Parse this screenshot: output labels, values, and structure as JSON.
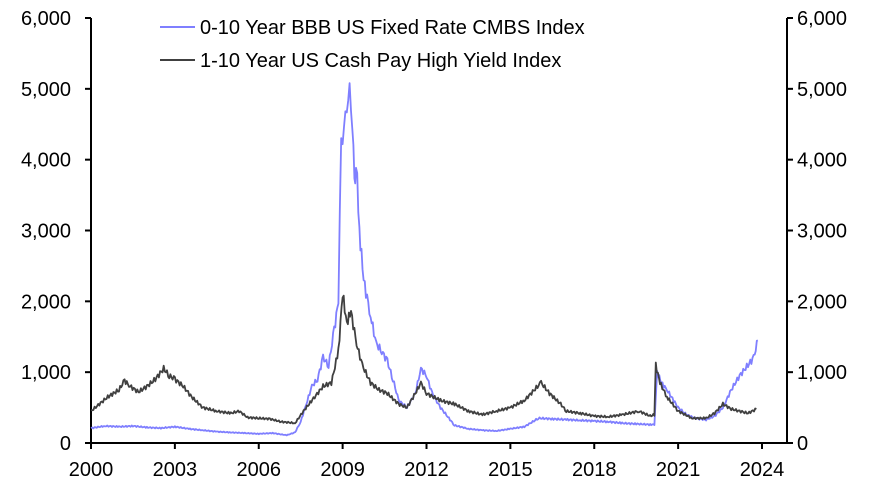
{
  "chart_data": {
    "type": "line",
    "title": "",
    "xlabel": "",
    "ylabel": "",
    "xlim": [
      2000,
      2024.9
    ],
    "ylim": [
      0,
      6000
    ],
    "x_ticks": [
      2000,
      2003,
      2006,
      2009,
      2012,
      2015,
      2018,
      2021,
      2024
    ],
    "x_tick_labels": [
      "2000",
      "2003",
      "2006",
      "2009",
      "2012",
      "2015",
      "2018",
      "2021",
      "2024"
    ],
    "y_ticks": [
      0,
      1000,
      2000,
      3000,
      4000,
      5000,
      6000
    ],
    "y_tick_labels": [
      "0",
      "1,000",
      "2,000",
      "3,000",
      "4,000",
      "5,000",
      "6,000"
    ],
    "grid": false,
    "legend_position": "top-center",
    "series": [
      {
        "name": "0-10 Year BBB US Fixed Rate CMBS Index",
        "color": "#7f7fff",
        "points": [
          [
            2000,
            210
          ],
          [
            2000.5,
            240
          ],
          [
            2001,
            230
          ],
          [
            2001.5,
            240
          ],
          [
            2002,
            220
          ],
          [
            2002.5,
            210
          ],
          [
            2003,
            230
          ],
          [
            2003.5,
            200
          ],
          [
            2004,
            180
          ],
          [
            2004.5,
            160
          ],
          [
            2005,
            150
          ],
          [
            2005.5,
            140
          ],
          [
            2006,
            130
          ],
          [
            2006.5,
            140
          ],
          [
            2007,
            110
          ],
          [
            2007.3,
            150
          ],
          [
            2007.5,
            300
          ],
          [
            2007.7,
            550
          ],
          [
            2007.9,
            800
          ],
          [
            2008.1,
            900
          ],
          [
            2008.3,
            1200
          ],
          [
            2008.5,
            1100
          ],
          [
            2008.7,
            1600
          ],
          [
            2008.85,
            2000
          ],
          [
            2008.95,
            4300
          ],
          [
            2009.05,
            4400
          ],
          [
            2009.15,
            4800
          ],
          [
            2009.25,
            4900
          ],
          [
            2009.35,
            4600
          ],
          [
            2009.42,
            3600
          ],
          [
            2009.48,
            4000
          ],
          [
            2009.6,
            3000
          ],
          [
            2009.75,
            2300
          ],
          [
            2010,
            1800
          ],
          [
            2010.2,
            1400
          ],
          [
            2010.4,
            1300
          ],
          [
            2010.6,
            1150
          ],
          [
            2010.8,
            900
          ],
          [
            2011,
            600
          ],
          [
            2011.3,
            500
          ],
          [
            2011.6,
            700
          ],
          [
            2011.8,
            1050
          ],
          [
            2012,
            950
          ],
          [
            2012.2,
            700
          ],
          [
            2012.5,
            500
          ],
          [
            2012.8,
            350
          ],
          [
            2013,
            250
          ],
          [
            2013.5,
            200
          ],
          [
            2014,
            180
          ],
          [
            2014.5,
            170
          ],
          [
            2015,
            200
          ],
          [
            2015.5,
            230
          ],
          [
            2015.8,
            300
          ],
          [
            2016,
            350
          ],
          [
            2016.5,
            340
          ],
          [
            2017,
            330
          ],
          [
            2017.5,
            320
          ],
          [
            2018,
            310
          ],
          [
            2018.5,
            300
          ],
          [
            2019,
            280
          ],
          [
            2019.5,
            270
          ],
          [
            2020,
            260
          ],
          [
            2020.15,
            260
          ],
          [
            2020.25,
            1000
          ],
          [
            2020.4,
            850
          ],
          [
            2020.6,
            750
          ],
          [
            2021,
            500
          ],
          [
            2021.3,
            400
          ],
          [
            2021.6,
            350
          ],
          [
            2022,
            330
          ],
          [
            2022.3,
            380
          ],
          [
            2022.6,
            500
          ],
          [
            2022.9,
            750
          ],
          [
            2023.2,
            950
          ],
          [
            2023.5,
            1100
          ],
          [
            2023.7,
            1200
          ],
          [
            2023.85,
            1450
          ]
        ]
      },
      {
        "name": "1-10 Year US Cash Pay High Yield Index",
        "color": "#404040",
        "points": [
          [
            2000,
            450
          ],
          [
            2000.3,
            550
          ],
          [
            2000.6,
            650
          ],
          [
            2001,
            750
          ],
          [
            2001.2,
            880
          ],
          [
            2001.4,
            800
          ],
          [
            2001.7,
            720
          ],
          [
            2002,
            800
          ],
          [
            2002.3,
            900
          ],
          [
            2002.6,
            1050
          ],
          [
            2002.8,
            950
          ],
          [
            2003,
            900
          ],
          [
            2003.3,
            800
          ],
          [
            2003.6,
            650
          ],
          [
            2004,
            500
          ],
          [
            2004.5,
            450
          ],
          [
            2005,
            420
          ],
          [
            2005.3,
            450
          ],
          [
            2005.6,
            360
          ],
          [
            2006,
            350
          ],
          [
            2006.4,
            340
          ],
          [
            2006.8,
            300
          ],
          [
            2007.3,
            280
          ],
          [
            2007.6,
            450
          ],
          [
            2008,
            650
          ],
          [
            2008.3,
            800
          ],
          [
            2008.6,
            850
          ],
          [
            2008.85,
            1300
          ],
          [
            2009.0,
            2100
          ],
          [
            2009.15,
            1700
          ],
          [
            2009.3,
            1850
          ],
          [
            2009.5,
            1400
          ],
          [
            2009.7,
            1100
          ],
          [
            2010,
            850
          ],
          [
            2010.3,
            750
          ],
          [
            2010.6,
            700
          ],
          [
            2011,
            550
          ],
          [
            2011.3,
            500
          ],
          [
            2011.6,
            700
          ],
          [
            2011.8,
            850
          ],
          [
            2012,
            700
          ],
          [
            2012.5,
            600
          ],
          [
            2013,
            550
          ],
          [
            2013.5,
            450
          ],
          [
            2014,
            400
          ],
          [
            2014.5,
            450
          ],
          [
            2015,
            500
          ],
          [
            2015.5,
            600
          ],
          [
            2016.1,
            850
          ],
          [
            2016.4,
            700
          ],
          [
            2016.8,
            550
          ],
          [
            2017,
            450
          ],
          [
            2017.5,
            420
          ],
          [
            2018,
            380
          ],
          [
            2018.5,
            370
          ],
          [
            2019,
            400
          ],
          [
            2019.6,
            450
          ],
          [
            2020,
            380
          ],
          [
            2020.15,
            400
          ],
          [
            2020.2,
            1100
          ],
          [
            2020.35,
            850
          ],
          [
            2020.6,
            650
          ],
          [
            2021,
            450
          ],
          [
            2021.5,
            350
          ],
          [
            2022,
            350
          ],
          [
            2022.3,
            420
          ],
          [
            2022.6,
            550
          ],
          [
            2022.9,
            480
          ],
          [
            2023.2,
            450
          ],
          [
            2023.5,
            420
          ],
          [
            2023.8,
            480
          ]
        ]
      }
    ]
  }
}
